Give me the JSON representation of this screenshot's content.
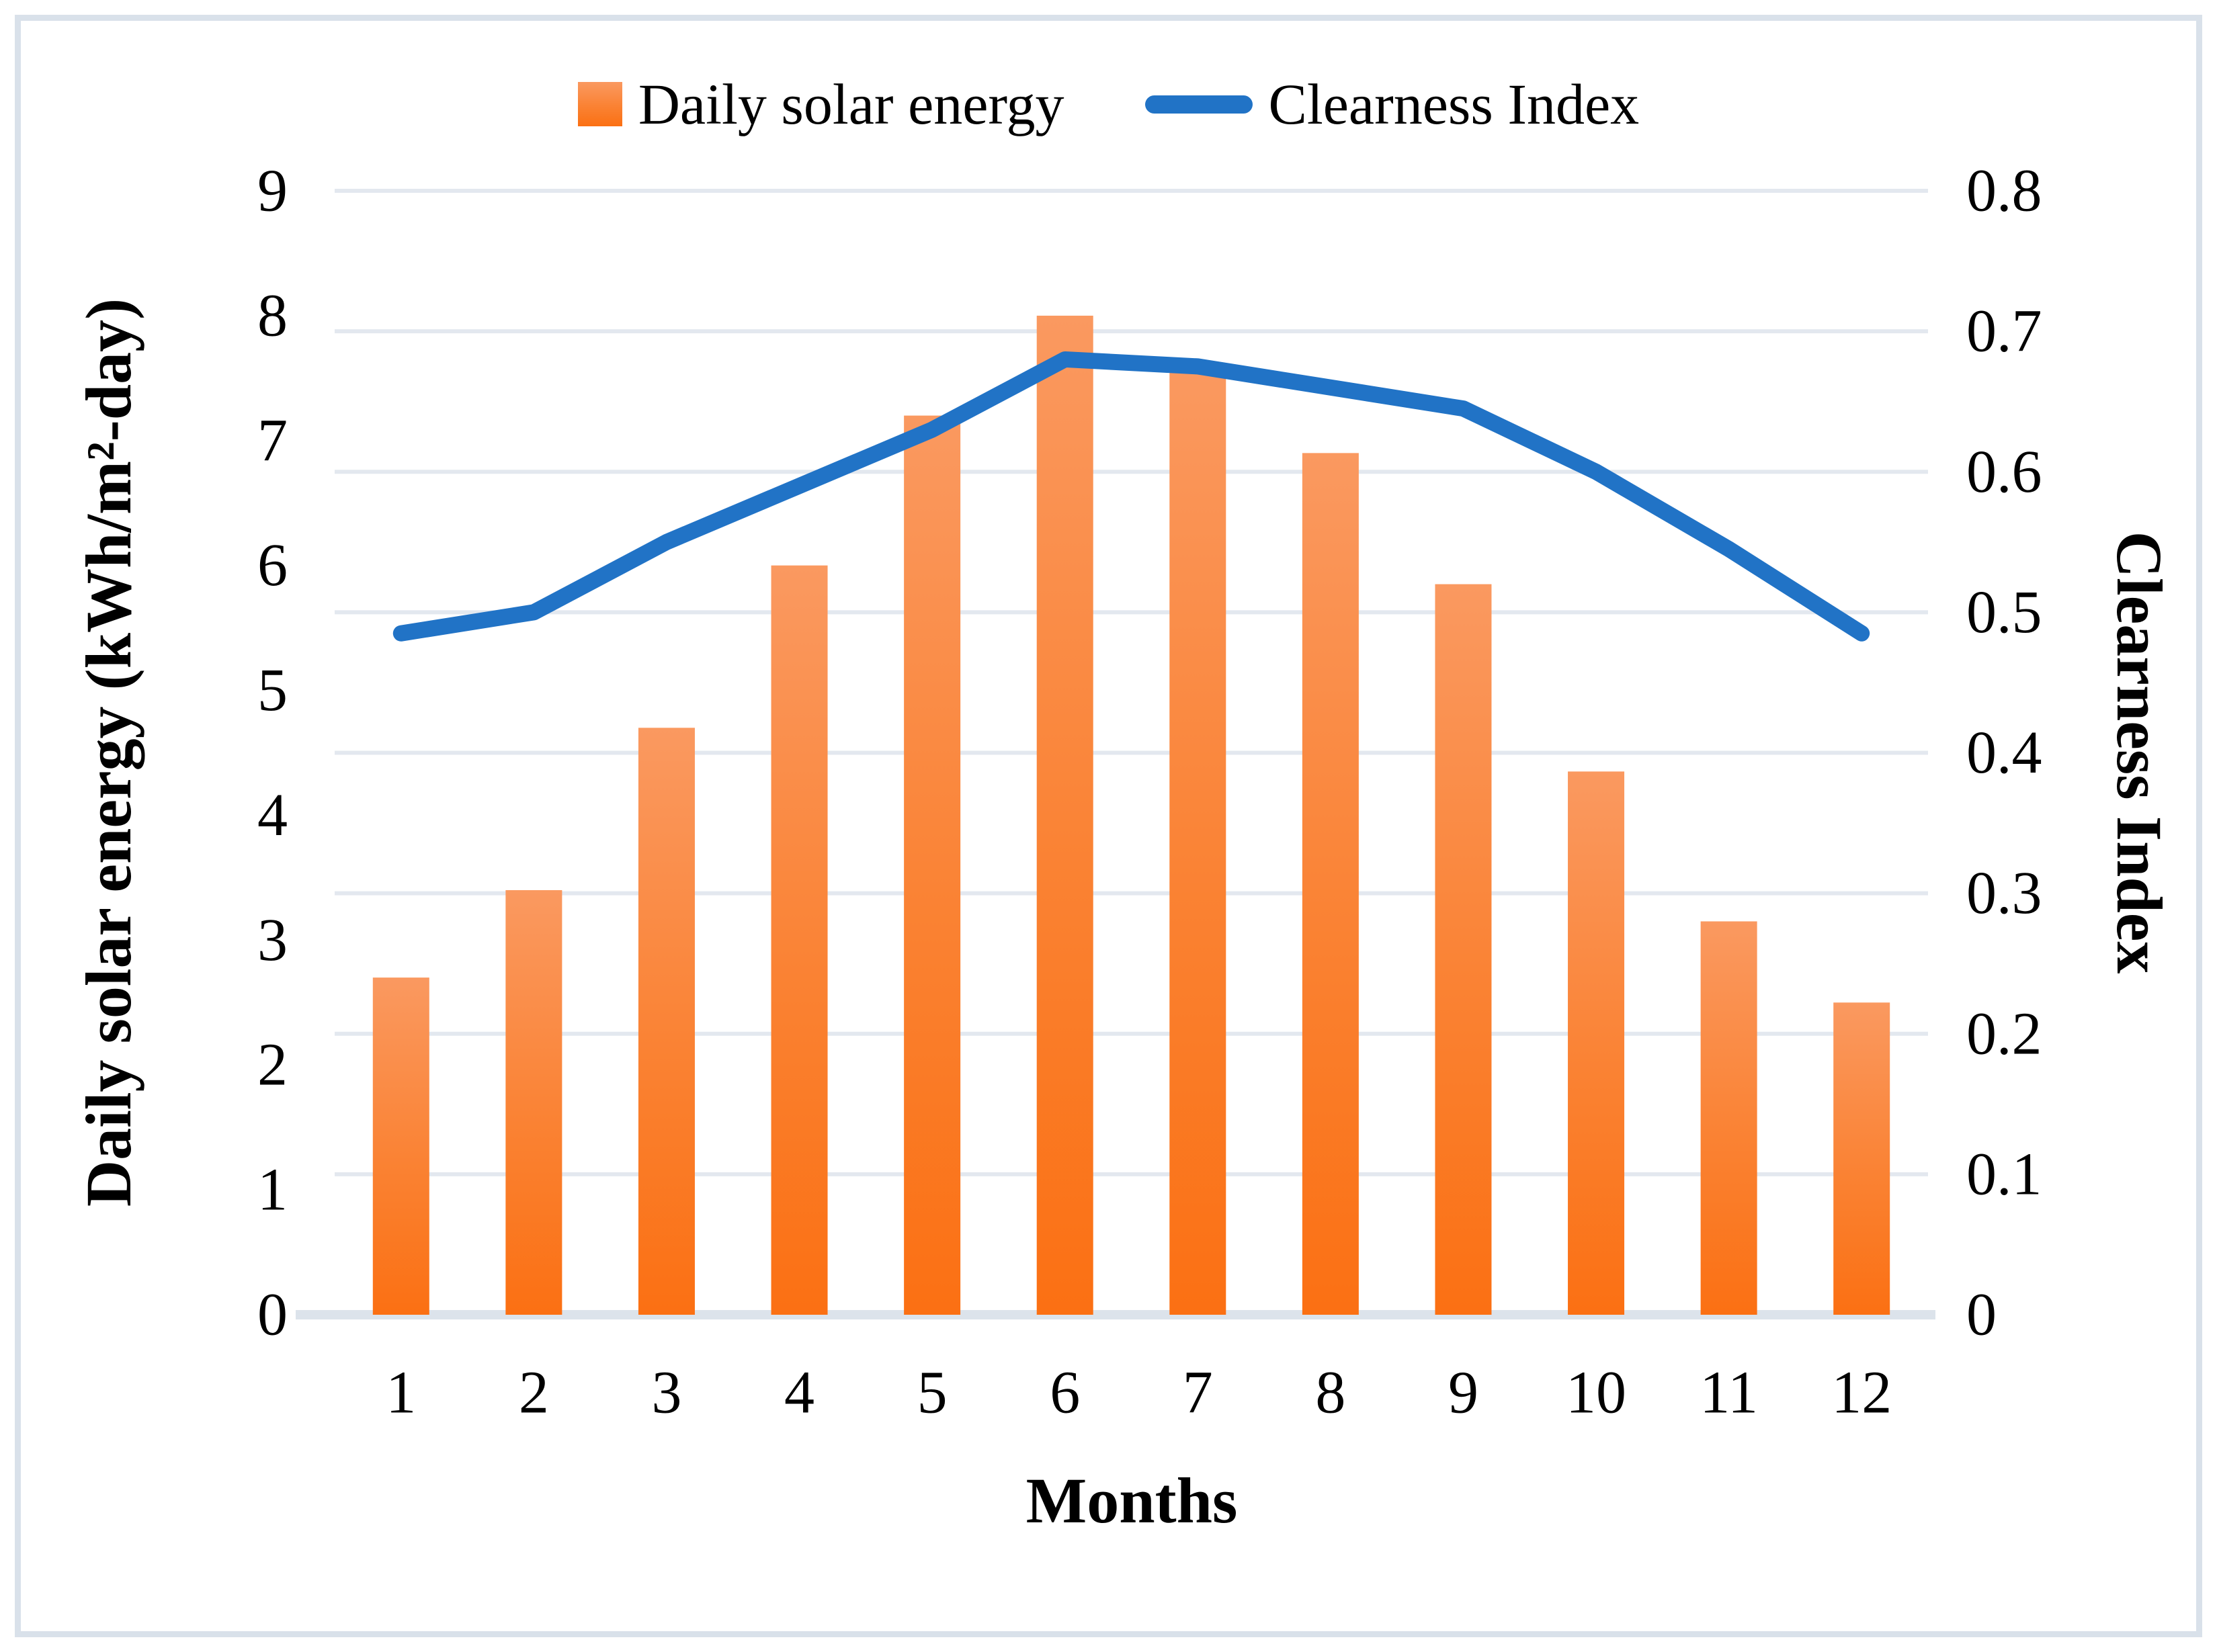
{
  "chart_data": {
    "type": "bar+line combo, dual axis",
    "categories": [
      "1",
      "2",
      "3",
      "4",
      "5",
      "6",
      "7",
      "8",
      "9",
      "10",
      "11",
      "12"
    ],
    "series": [
      {
        "name": "Daily solar energy",
        "type": "bar",
        "axis": "left",
        "values": [
          2.7,
          3.4,
          4.7,
          6.0,
          7.2,
          8.0,
          7.6,
          6.9,
          5.85,
          4.35,
          3.15,
          2.5
        ]
      },
      {
        "name": "Clearness Index",
        "type": "line",
        "axis": "right",
        "values": [
          0.485,
          0.5,
          0.55,
          0.59,
          0.63,
          0.68,
          0.675,
          0.66,
          0.645,
          0.6,
          0.545,
          0.485
        ]
      }
    ],
    "left_axis": {
      "title": "Daily solar energy (kWh/m²-day)",
      "min": 0,
      "max": 9,
      "ticks": [
        "9",
        "8",
        "7",
        "6",
        "5",
        "4",
        "3",
        "2",
        "1",
        "0"
      ]
    },
    "right_axis": {
      "title": "Clearness Index",
      "min": 0,
      "max": 0.8,
      "ticks": [
        "0.8",
        "0.7",
        "0.6",
        "0.5",
        "0.4",
        "0.3",
        "0.2",
        "0.1",
        "0"
      ]
    },
    "x_axis": {
      "title": "Months",
      "labels": [
        "1",
        "2",
        "3",
        "4",
        "5",
        "6",
        "7",
        "8",
        "9",
        "10",
        "11",
        "12"
      ]
    },
    "legend_position": "top-center",
    "grid": "horizontal gridlines at right-axis 0.1 steps",
    "colors": {
      "bar_top": "#fa9960",
      "bar_mid": "#fa8233",
      "bar_bottom": "#fb7013",
      "line": "#2173c6",
      "gridline": "#e3e8ef",
      "axis_line": "#dce3eb",
      "border": "#d9e1ea"
    }
  }
}
